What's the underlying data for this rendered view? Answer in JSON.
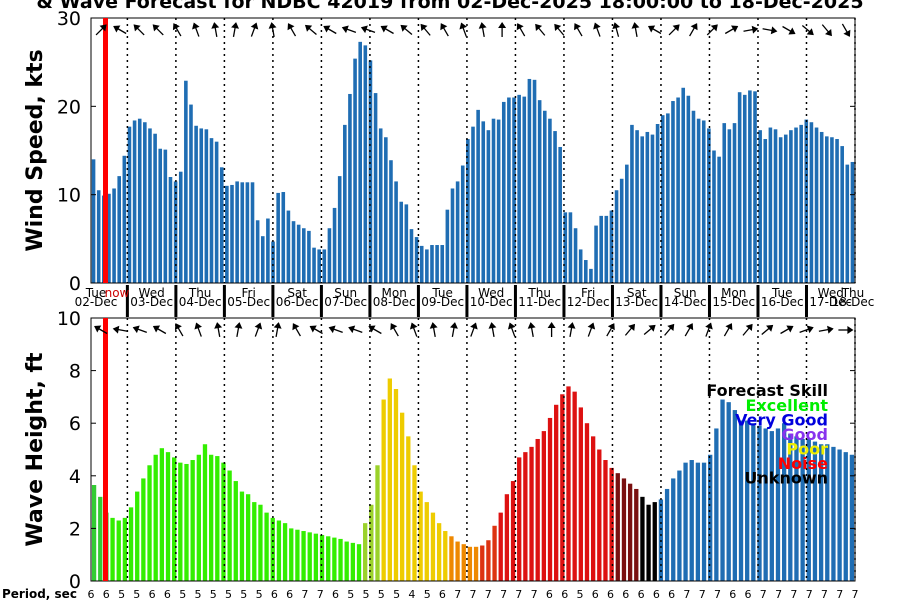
{
  "title": "& Wave Forecast for NDBC 42019 from 02-Dec-2025 18:00:00 to 18-Dec-2025",
  "chart_data": [
    {
      "type": "bar",
      "ylabel": "Wind Speed, kts",
      "ylim": [
        0,
        30
      ],
      "yticks": [
        0,
        10,
        20,
        30
      ],
      "grid": false,
      "values": [
        14,
        10.5,
        9.9,
        10.1,
        10.7,
        12.1,
        14.4,
        17.7,
        18.4,
        18.6,
        18.2,
        17.5,
        16.9,
        15.2,
        15.1,
        12,
        11.5,
        12.6,
        22.9,
        20.2,
        17.8,
        17.5,
        17.4,
        16.4,
        16,
        13.1,
        11,
        11.1,
        11.5,
        11.4,
        11.4,
        11.4,
        7.1,
        5.3,
        7.3,
        4.7,
        10.2,
        10.3,
        8.2,
        7,
        6.6,
        6.2,
        5.9,
        4,
        3.8,
        3.8,
        6.2,
        8.5,
        12.1,
        17.9,
        21.4,
        25.4,
        27.3,
        26.9,
        25.2,
        21.5,
        17.5,
        16.5,
        13.9,
        11.5,
        9.2,
        8.9,
        6.1,
        5.2,
        4.2,
        3.8,
        4.3,
        4.3,
        4.3,
        8.3,
        10.7,
        11.5,
        13.3,
        16.3,
        17.7,
        19.6,
        18.3,
        17.3,
        18.6,
        18.5,
        20.5,
        21,
        21,
        21.3,
        21.1,
        23.1,
        23,
        20.7,
        19.5,
        18.6,
        17.2,
        15.4,
        8,
        8,
        6.2,
        3.8,
        2.6,
        1.6,
        6.5,
        7.6,
        7.6,
        8.2,
        10.5,
        11.8,
        13.4,
        17.9,
        17.3,
        16.6,
        17.1,
        16.8,
        18,
        19,
        19.2,
        20.6,
        21,
        22.1,
        21.2,
        19.5,
        18.6,
        18.4,
        17.5,
        15,
        14.3,
        18.1,
        17.4,
        18.1,
        21.6,
        21.3,
        21.8,
        21.7,
        17.3,
        16.3,
        17.6,
        17.4,
        16.5,
        16.8,
        17.3,
        17.6,
        17.9,
        18.5,
        18.2,
        17.6,
        17.1,
        16.6,
        16.5,
        16.3,
        15.5,
        13.4,
        13.7
      ],
      "day_labels": [
        {
          "day": "Tue",
          "date": "02-Dec"
        },
        {
          "day": "Wed",
          "date": "03-Dec"
        },
        {
          "day": "Thu",
          "date": "04-Dec"
        },
        {
          "day": "Fri",
          "date": "05-Dec"
        },
        {
          "day": "Sat",
          "date": "06-Dec"
        },
        {
          "day": "Sun",
          "date": "07-Dec"
        },
        {
          "day": "Mon",
          "date": "08-Dec"
        },
        {
          "day": "Tue",
          "date": "09-Dec"
        },
        {
          "day": "Wed",
          "date": "10-Dec"
        },
        {
          "day": "Thu",
          "date": "11-Dec"
        },
        {
          "day": "Fri",
          "date": "12-Dec"
        },
        {
          "day": "Sat",
          "date": "13-Dec"
        },
        {
          "day": "Sun",
          "date": "14-Dec"
        },
        {
          "day": "Mon",
          "date": "15-Dec"
        },
        {
          "day": "Tue",
          "date": "16-Dec"
        },
        {
          "day": "Wed",
          "date": "17-Dec"
        },
        {
          "day": "Thu",
          "date": "18-Dec"
        }
      ],
      "now_marker_label": "now",
      "direction_arrows_deg": [
        45,
        300,
        315,
        315,
        330,
        340,
        350,
        10,
        20,
        350,
        330,
        310,
        300,
        290,
        290,
        300,
        310,
        320,
        330,
        340,
        350,
        0,
        330,
        320,
        320,
        330,
        340,
        345,
        350,
        300,
        45,
        30,
        45,
        60,
        80,
        100,
        120,
        130,
        140,
        150
      ],
      "colors": {
        "bar": "#1f6db3",
        "now_line": "#ff0000"
      }
    },
    {
      "type": "bar",
      "ylabel": "Wave Height, ft",
      "xlabel": "Period, sec",
      "ylim": [
        0,
        10
      ],
      "yticks": [
        0,
        2,
        4,
        6,
        8,
        10
      ],
      "grid": false,
      "values": [
        3.65,
        3.2,
        2.6,
        2.4,
        2.3,
        2.4,
        2.8,
        3.4,
        3.9,
        4.4,
        4.8,
        5.05,
        4.9,
        4.7,
        4.5,
        4.45,
        4.6,
        4.8,
        5.2,
        4.8,
        4.75,
        4.5,
        4.2,
        3.8,
        3.4,
        3.3,
        3,
        2.9,
        2.6,
        2.4,
        2.3,
        2.2,
        2,
        1.95,
        1.9,
        1.85,
        1.8,
        1.75,
        1.7,
        1.65,
        1.6,
        1.5,
        1.45,
        1.4,
        2.2,
        2.9,
        4.4,
        6.9,
        7.7,
        7.3,
        6.4,
        5.5,
        4.4,
        3.4,
        3,
        2.6,
        2.2,
        1.9,
        1.7,
        1.5,
        1.4,
        1.3,
        1.3,
        1.35,
        1.55,
        2.1,
        2.6,
        3.3,
        3.8,
        4.7,
        4.9,
        5.1,
        5.4,
        5.7,
        6.2,
        6.7,
        7.1,
        7.4,
        7.2,
        6.6,
        6,
        5.5,
        5,
        4.6,
        4.3,
        4.1,
        3.9,
        3.7,
        3.5,
        3.2,
        2.9,
        3,
        3.1,
        3.5,
        3.9,
        4.2,
        4.5,
        4.6,
        4.5,
        4.5,
        4.8,
        5.8,
        6.9,
        6.8,
        6.5,
        6.1,
        6.1,
        6,
        5.9,
        5.8,
        5.7,
        5.8,
        6,
        5.6,
        5.5,
        5.4,
        5.4,
        5.3,
        5.2,
        5.2,
        5.1,
        5.0,
        4.9,
        4.8
      ],
      "bar_colors_by_range": [
        {
          "from": 0,
          "to": 2,
          "color": "#33cc33"
        },
        {
          "from": 3,
          "to": 43,
          "color": "#33ee00"
        },
        {
          "from": 44,
          "to": 46,
          "color": "#9bd22a"
        },
        {
          "from": 47,
          "to": 57,
          "color": "#eecc00"
        },
        {
          "from": 58,
          "to": 62,
          "color": "#ee8800"
        },
        {
          "from": 63,
          "to": 65,
          "color": "#dd3311"
        },
        {
          "from": 66,
          "to": 84,
          "color": "#dd1111"
        },
        {
          "from": 85,
          "to": 88,
          "color": "#7a1010"
        },
        {
          "from": 89,
          "to": 91,
          "color": "#000000"
        },
        {
          "from": 92,
          "to": 123,
          "color": "#1f6db3"
        }
      ],
      "period_ticks": [
        6,
        6,
        5,
        5,
        6,
        6,
        5,
        5,
        5,
        5,
        5,
        5,
        6,
        6,
        7,
        7,
        6,
        5,
        5,
        5,
        5,
        4,
        5,
        6,
        7,
        7,
        7,
        7,
        7,
        7,
        6,
        6,
        5,
        6,
        6,
        6,
        6,
        6,
        6,
        7,
        7,
        7,
        6,
        6,
        7,
        7,
        7,
        7,
        7,
        7,
        7
      ],
      "direction_arrows_deg": [
        300,
        280,
        290,
        300,
        330,
        340,
        350,
        10,
        20,
        10,
        330,
        300,
        290,
        290,
        300,
        330,
        340,
        350,
        10,
        20,
        350,
        340,
        350,
        0,
        10,
        20,
        30,
        40,
        50,
        40,
        30,
        20,
        30,
        40,
        50,
        60,
        70,
        80,
        90
      ],
      "legend": {
        "title": "Forecast Skill",
        "items": [
          {
            "label": "Excellent",
            "color": "#00ee00"
          },
          {
            "label": "Very Good",
            "color": "#0000dd"
          },
          {
            "label": "Good",
            "color": "#8833ee"
          },
          {
            "label": "Poor",
            "color": "#eeee00"
          },
          {
            "label": "Noise",
            "color": "#ff0000"
          },
          {
            "label": "Unknown",
            "color": "#000000"
          }
        ]
      }
    }
  ]
}
